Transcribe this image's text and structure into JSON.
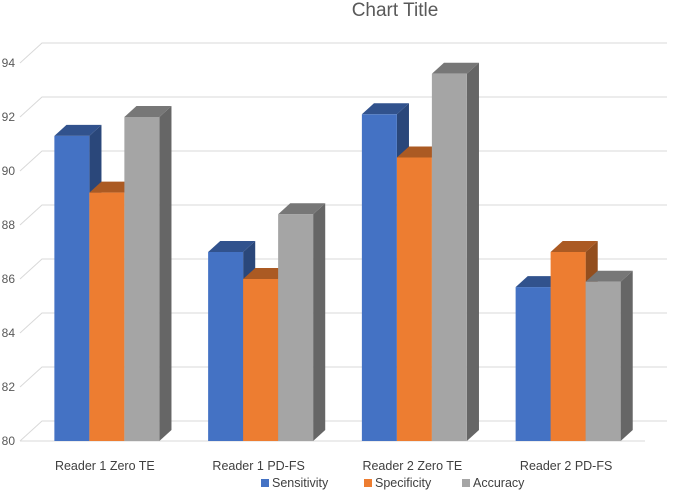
{
  "chart_data": {
    "type": "bar",
    "style": "3d-clustered-column",
    "title": "Chart Title",
    "categories": [
      "Reader 1 Zero TE",
      "Reader 1 PD-FS",
      "Reader 2 Zero TE",
      "Reader 2 PD-FS"
    ],
    "series": [
      {
        "name": "Sensitivity",
        "color": "#4472C4",
        "values": [
          91.3,
          87.0,
          92.1,
          85.7
        ]
      },
      {
        "name": "Specificity",
        "color": "#ED7D31",
        "values": [
          89.2,
          86.0,
          90.5,
          87.0
        ]
      },
      {
        "name": "Accuracy",
        "color": "#A5A5A5",
        "values": [
          92.0,
          88.4,
          93.6,
          85.9
        ]
      }
    ],
    "ylim": [
      80,
      94
    ],
    "yticks": [
      80,
      82,
      84,
      86,
      88,
      90,
      92,
      94
    ],
    "grid": true,
    "legend": "bottom"
  }
}
